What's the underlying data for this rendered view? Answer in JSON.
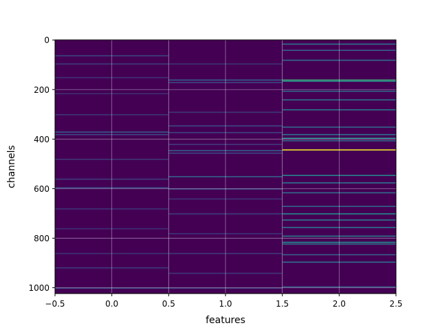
{
  "chart_data": {
    "type": "heatmap",
    "title": "",
    "xlabel": "features",
    "ylabel": "channels",
    "xlim": [
      -0.5,
      2.5
    ],
    "ylim": [
      1023.5,
      -0.5
    ],
    "y_inverted": true,
    "grid": true,
    "colormap": "viridis",
    "background_color": "#440154",
    "x_ticks": [
      "−0.5",
      "0.0",
      "0.5",
      "1.0",
      "1.5",
      "2.0",
      "2.5"
    ],
    "x_tick_values": [
      -0.5,
      0.0,
      0.5,
      1.0,
      1.5,
      2.0,
      2.5
    ],
    "y_ticks": [
      "0",
      "200",
      "400",
      "600",
      "800",
      "1000"
    ],
    "y_tick_values": [
      0,
      200,
      400,
      600,
      800,
      1000
    ],
    "columns": [
      {
        "feature": 0,
        "highlights": [
          {
            "channel": 62,
            "intensity": 0.2
          },
          {
            "channel": 95,
            "intensity": 0.18
          },
          {
            "channel": 150,
            "intensity": 0.15
          },
          {
            "channel": 215,
            "intensity": 0.14
          },
          {
            "channel": 300,
            "intensity": 0.16
          },
          {
            "channel": 370,
            "intensity": 0.28
          },
          {
            "channel": 380,
            "intensity": 0.22
          },
          {
            "channel": 480,
            "intensity": 0.16
          },
          {
            "channel": 560,
            "intensity": 0.18
          },
          {
            "channel": 595,
            "intensity": 0.25
          },
          {
            "channel": 680,
            "intensity": 0.15
          },
          {
            "channel": 760,
            "intensity": 0.14
          },
          {
            "channel": 860,
            "intensity": 0.15
          },
          {
            "channel": 918,
            "intensity": 0.18
          },
          {
            "channel": 1000,
            "intensity": 0.22
          }
        ]
      },
      {
        "feature": 1,
        "highlights": [
          {
            "channel": 95,
            "intensity": 0.15
          },
          {
            "channel": 160,
            "intensity": 0.3
          },
          {
            "channel": 170,
            "intensity": 0.22
          },
          {
            "channel": 290,
            "intensity": 0.16
          },
          {
            "channel": 345,
            "intensity": 0.22
          },
          {
            "channel": 372,
            "intensity": 0.2
          },
          {
            "channel": 420,
            "intensity": 0.18
          },
          {
            "channel": 445,
            "intensity": 0.3
          },
          {
            "channel": 455,
            "intensity": 0.22
          },
          {
            "channel": 550,
            "intensity": 0.32
          },
          {
            "channel": 600,
            "intensity": 0.2
          },
          {
            "channel": 640,
            "intensity": 0.15
          },
          {
            "channel": 700,
            "intensity": 0.18
          },
          {
            "channel": 780,
            "intensity": 0.15
          },
          {
            "channel": 860,
            "intensity": 0.17
          },
          {
            "channel": 940,
            "intensity": 0.16
          },
          {
            "channel": 1000,
            "intensity": 0.2
          }
        ]
      },
      {
        "feature": 2,
        "highlights": [
          {
            "channel": 15,
            "intensity": 0.35
          },
          {
            "channel": 40,
            "intensity": 0.3
          },
          {
            "channel": 80,
            "intensity": 0.35
          },
          {
            "channel": 160,
            "intensity": 0.62
          },
          {
            "channel": 165,
            "intensity": 0.45
          },
          {
            "channel": 205,
            "intensity": 0.35
          },
          {
            "channel": 240,
            "intensity": 0.38
          },
          {
            "channel": 280,
            "intensity": 0.4
          },
          {
            "channel": 350,
            "intensity": 0.33
          },
          {
            "channel": 380,
            "intensity": 0.38
          },
          {
            "channel": 395,
            "intensity": 0.5
          },
          {
            "channel": 405,
            "intensity": 0.35
          },
          {
            "channel": 442,
            "intensity": 0.98
          },
          {
            "channel": 545,
            "intensity": 0.45
          },
          {
            "channel": 575,
            "intensity": 0.38
          },
          {
            "channel": 615,
            "intensity": 0.35
          },
          {
            "channel": 670,
            "intensity": 0.33
          },
          {
            "channel": 700,
            "intensity": 0.48
          },
          {
            "channel": 725,
            "intensity": 0.4
          },
          {
            "channel": 755,
            "intensity": 0.38
          },
          {
            "channel": 790,
            "intensity": 0.42
          },
          {
            "channel": 815,
            "intensity": 0.5
          },
          {
            "channel": 822,
            "intensity": 0.35
          },
          {
            "channel": 865,
            "intensity": 0.3
          },
          {
            "channel": 895,
            "intensity": 0.38
          },
          {
            "channel": 995,
            "intensity": 0.3
          }
        ]
      }
    ]
  }
}
